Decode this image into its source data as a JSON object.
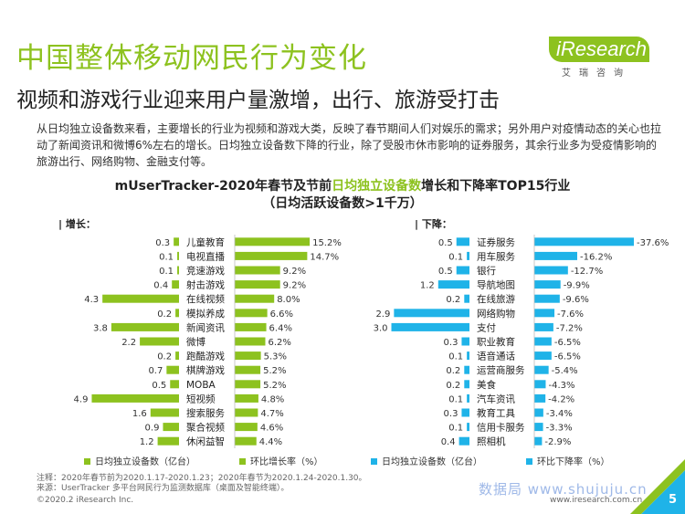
{
  "header": {
    "title": "中国整体移动网民行为变化",
    "subtitle": "视频和游戏行业迎来用户量激增，出行、旅游受打击"
  },
  "logo": {
    "main": "iResearch",
    "sub": "艾瑞咨询"
  },
  "intro": "从日均独立设备数来看，主要增长的行业为视频和游戏大类，反映了春节期间人们对娱乐的需求；另外用户对疫情动态的关心也拉动了新闻资讯和微博6%左右的增长。日均独立设备数下降的行业，除了受股市休市影响的证券服务，其余行业多为受疫情影响的旅游出行、网络购物、金融支付等。",
  "chart_title": {
    "prefix": "mUserTracker-2020年春节及节前",
    "highlight": "日均独立设备数",
    "suffix": "增长和下降率TOP15行业",
    "line2": "（日均活跃设备数>1千万）"
  },
  "colors": {
    "green": "#8dc21f",
    "blue": "#1fb3e8",
    "green_light": "#bcd97a",
    "blue_light": "#7fd0f0"
  },
  "chart_data": [
    {
      "type": "bar",
      "section_label": "| 增长：",
      "categories": [
        "儿童教育",
        "电视直播",
        "竞速游戏",
        "射击游戏",
        "在线视频",
        "模拟养成",
        "新闻资讯",
        "微博",
        "跑酷游戏",
        "棋牌游戏",
        "MOBA",
        "短视频",
        "搜索服务",
        "聚合视频",
        "休闲益智"
      ],
      "series": [
        {
          "name": "日均独立设备数（亿台）",
          "values": [
            0.3,
            0.1,
            0.1,
            0.4,
            4.3,
            0.2,
            3.8,
            2.2,
            0.2,
            0.7,
            0.5,
            4.9,
            1.6,
            0.9,
            1.2
          ],
          "labels": [
            "0.3",
            "0.1",
            "0.1",
            "0.4",
            "4.3",
            "0.2",
            "3.8",
            "2.2",
            "0.2",
            "0.7",
            "0.5",
            "4.9",
            "1.6",
            "0.9",
            "1.2"
          ]
        },
        {
          "name": "环比增长率（%）",
          "values": [
            15.2,
            14.7,
            9.2,
            9.2,
            8.0,
            6.6,
            6.4,
            6.2,
            5.3,
            5.2,
            5.2,
            4.8,
            4.7,
            4.6,
            4.4
          ],
          "labels": [
            "15.2%",
            "14.7%",
            "9.2%",
            "9.2%",
            "8.0%",
            "6.6%",
            "6.4%",
            "6.2%",
            "5.3%",
            "5.2%",
            "5.2%",
            "4.8%",
            "4.7%",
            "4.6%",
            "4.4%"
          ]
        }
      ],
      "legend": [
        "日均独立设备数（亿台）",
        "环比增长率（%）"
      ]
    },
    {
      "type": "bar",
      "section_label": "| 下降：",
      "categories": [
        "证券服务",
        "用车服务",
        "银行",
        "导航地图",
        "在线旅游",
        "网络购物",
        "支付",
        "职业教育",
        "语音通话",
        "运营商服务",
        "美食",
        "汽车资讯",
        "教育工具",
        "信用卡服务",
        "照相机"
      ],
      "series": [
        {
          "name": "日均独立设备数（亿台）",
          "values": [
            0.5,
            0.1,
            0.5,
            1.2,
            0.2,
            2.9,
            3.0,
            0.3,
            0.1,
            0.2,
            0.2,
            0.1,
            0.3,
            0.1,
            0.4
          ],
          "labels": [
            "0.5",
            "0.1",
            "0.5",
            "1.2",
            "0.2",
            "2.9",
            "3.0",
            "0.3",
            "0.1",
            "0.2",
            "0.2",
            "0.1",
            "0.3",
            "0.1",
            "0.4"
          ]
        },
        {
          "name": "环比下降率（%）",
          "values": [
            -37.6,
            -16.2,
            -12.7,
            -9.9,
            -9.6,
            -7.6,
            -7.2,
            -6.5,
            -6.5,
            -5.4,
            -4.3,
            -4.2,
            -3.4,
            -3.3,
            -2.9
          ],
          "labels": [
            "-37.6%",
            "-16.2%",
            "-12.7%",
            "-9.9%",
            "-9.6%",
            "-7.6%",
            "-7.2%",
            "-6.5%",
            "-6.5%",
            "-5.4%",
            "-4.3%",
            "-4.2%",
            "-3.4%",
            "-3.3%",
            "-2.9%"
          ]
        }
      ],
      "legend": [
        "日均独立设备数（亿台）",
        "环比下降率（%）"
      ]
    }
  ],
  "notes": {
    "line1": "注释：2020年春节前为2020.1.17-2020.1.23；2020年春节为2020.1.24-2020.1.30。",
    "line2": "来源：UserTracker 多平台网民行为监测数据库（桌面及智能终端）。"
  },
  "footer": {
    "copyright": "©2020.2 iResearch Inc.",
    "url": "www.iresearch.com.cn",
    "page_number": "5",
    "watermark": "数据局 www.shujuju.cn"
  }
}
